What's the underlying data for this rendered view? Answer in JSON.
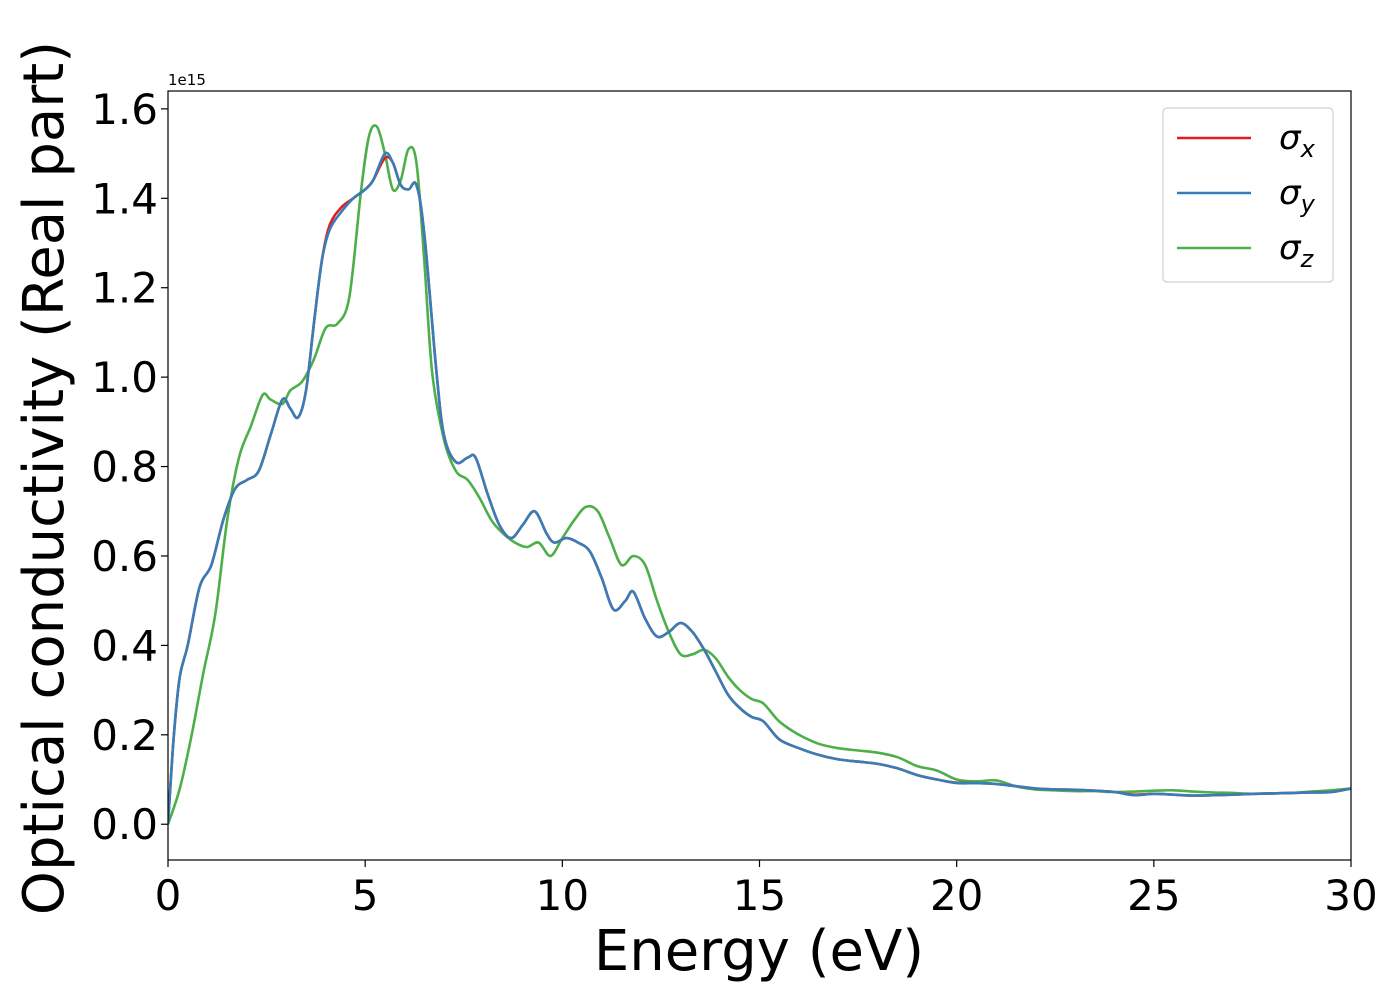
{
  "chart_data": {
    "type": "line",
    "title": "",
    "xlabel": "Energy (eV)",
    "ylabel": "Optical conductivity (Real part)",
    "y_offset_text": "1e15",
    "xlim": [
      0,
      30
    ],
    "ylim": [
      -0.08,
      1.64
    ],
    "xticks": [
      0,
      5,
      10,
      15,
      20,
      25,
      30
    ],
    "xtick_labels": [
      "0",
      "5",
      "10",
      "15",
      "20",
      "25",
      "30"
    ],
    "yticks": [
      0.0,
      0.2,
      0.4,
      0.6,
      0.8,
      1.0,
      1.2,
      1.4,
      1.6
    ],
    "ytick_labels": [
      "0.0",
      "0.2",
      "0.4",
      "0.6",
      "0.8",
      "1.0",
      "1.2",
      "1.4",
      "1.6"
    ],
    "grid": false,
    "legend_position": "top-right",
    "series": [
      {
        "name": "σ",
        "subscript": "x",
        "color": "#e41a1c",
        "x": [
          0,
          0.15,
          0.3,
          0.5,
          0.8,
          1.1,
          1.4,
          1.7,
          2.0,
          2.3,
          2.6,
          2.9,
          3.1,
          3.3,
          3.5,
          3.7,
          3.9,
          4.1,
          4.4,
          4.7,
          5.0,
          5.2,
          5.5,
          5.7,
          5.9,
          6.1,
          6.3,
          6.5,
          6.8,
          7.0,
          7.3,
          7.6,
          7.8,
          8.1,
          8.4,
          8.7,
          9.0,
          9.3,
          9.6,
          9.8,
          10.1,
          10.4,
          10.7,
          11.0,
          11.3,
          11.6,
          11.8,
          12.1,
          12.4,
          12.7,
          13.0,
          13.3,
          13.6,
          13.9,
          14.2,
          14.5,
          14.8,
          15.1,
          15.5,
          16.0,
          16.5,
          17.0,
          17.5,
          18.0,
          18.5,
          19.0,
          19.5,
          20.0,
          20.5,
          21.0,
          21.5,
          22.0,
          22.5,
          23.0,
          23.5,
          24.0,
          24.5,
          25.0,
          25.5,
          26.0,
          26.5,
          27.0,
          27.5,
          28.0,
          28.5,
          29.0,
          29.5,
          30.0
        ],
        "values": [
          0.0,
          0.2,
          0.33,
          0.4,
          0.53,
          0.58,
          0.68,
          0.75,
          0.77,
          0.79,
          0.87,
          0.95,
          0.93,
          0.91,
          0.97,
          1.12,
          1.26,
          1.34,
          1.38,
          1.4,
          1.42,
          1.44,
          1.49,
          1.48,
          1.43,
          1.42,
          1.43,
          1.32,
          1.02,
          0.87,
          0.81,
          0.82,
          0.82,
          0.74,
          0.67,
          0.64,
          0.67,
          0.7,
          0.65,
          0.63,
          0.64,
          0.63,
          0.61,
          0.55,
          0.48,
          0.5,
          0.52,
          0.46,
          0.42,
          0.43,
          0.45,
          0.43,
          0.39,
          0.34,
          0.29,
          0.26,
          0.24,
          0.23,
          0.19,
          0.17,
          0.155,
          0.145,
          0.14,
          0.135,
          0.125,
          0.11,
          0.1,
          0.093,
          0.092,
          0.09,
          0.085,
          0.08,
          0.078,
          0.077,
          0.075,
          0.072,
          0.066,
          0.068,
          0.066,
          0.064,
          0.065,
          0.066,
          0.068,
          0.069,
          0.07,
          0.071,
          0.072,
          0.08
        ]
      },
      {
        "name": "σ",
        "subscript": "y",
        "color": "#377eb8",
        "x": [
          0,
          0.15,
          0.3,
          0.5,
          0.8,
          1.1,
          1.4,
          1.7,
          2.0,
          2.3,
          2.6,
          2.9,
          3.1,
          3.3,
          3.5,
          3.7,
          3.9,
          4.1,
          4.4,
          4.7,
          5.0,
          5.2,
          5.5,
          5.7,
          5.9,
          6.1,
          6.3,
          6.5,
          6.8,
          7.0,
          7.3,
          7.6,
          7.8,
          8.1,
          8.4,
          8.7,
          9.0,
          9.3,
          9.6,
          9.8,
          10.1,
          10.4,
          10.7,
          11.0,
          11.3,
          11.6,
          11.8,
          12.1,
          12.4,
          12.7,
          13.0,
          13.3,
          13.6,
          13.9,
          14.2,
          14.5,
          14.8,
          15.1,
          15.5,
          16.0,
          16.5,
          17.0,
          17.5,
          18.0,
          18.5,
          19.0,
          19.5,
          20.0,
          20.5,
          21.0,
          21.5,
          22.0,
          22.5,
          23.0,
          23.5,
          24.0,
          24.5,
          25.0,
          25.5,
          26.0,
          26.5,
          27.0,
          27.5,
          28.0,
          28.5,
          29.0,
          29.5,
          30.0
        ],
        "values": [
          0.0,
          0.2,
          0.33,
          0.4,
          0.53,
          0.58,
          0.68,
          0.75,
          0.77,
          0.79,
          0.87,
          0.95,
          0.93,
          0.91,
          0.97,
          1.12,
          1.26,
          1.33,
          1.37,
          1.4,
          1.42,
          1.44,
          1.5,
          1.48,
          1.43,
          1.42,
          1.43,
          1.32,
          1.02,
          0.87,
          0.81,
          0.82,
          0.82,
          0.74,
          0.67,
          0.64,
          0.67,
          0.7,
          0.65,
          0.63,
          0.64,
          0.63,
          0.61,
          0.55,
          0.48,
          0.5,
          0.52,
          0.46,
          0.42,
          0.43,
          0.45,
          0.43,
          0.39,
          0.34,
          0.29,
          0.26,
          0.24,
          0.23,
          0.19,
          0.17,
          0.155,
          0.145,
          0.14,
          0.135,
          0.125,
          0.11,
          0.1,
          0.092,
          0.092,
          0.09,
          0.085,
          0.08,
          0.078,
          0.077,
          0.075,
          0.072,
          0.065,
          0.068,
          0.066,
          0.064,
          0.065,
          0.066,
          0.068,
          0.069,
          0.07,
          0.071,
          0.072,
          0.08
        ]
      },
      {
        "name": "σ",
        "subscript": "z",
        "color": "#4daf4a",
        "x": [
          0,
          0.3,
          0.6,
          0.9,
          1.2,
          1.5,
          1.8,
          2.1,
          2.4,
          2.6,
          2.9,
          3.1,
          3.4,
          3.7,
          4.0,
          4.3,
          4.6,
          4.9,
          5.1,
          5.3,
          5.5,
          5.7,
          5.9,
          6.1,
          6.3,
          6.5,
          6.7,
          7.0,
          7.3,
          7.6,
          7.9,
          8.2,
          8.5,
          8.8,
          9.1,
          9.4,
          9.7,
          10.0,
          10.3,
          10.6,
          10.9,
          11.2,
          11.5,
          11.8,
          12.1,
          12.4,
          12.7,
          13.0,
          13.3,
          13.6,
          13.9,
          14.2,
          14.5,
          14.8,
          15.1,
          15.5,
          16.0,
          16.5,
          17.0,
          17.5,
          18.0,
          18.5,
          19.0,
          19.5,
          20.0,
          20.5,
          21.0,
          21.5,
          22.0,
          22.5,
          23.0,
          23.5,
          24.0,
          24.5,
          25.0,
          25.5,
          26.0,
          26.5,
          27.0,
          27.5,
          28.0,
          28.5,
          29.0,
          29.5,
          30.0
        ],
        "values": [
          0.0,
          0.08,
          0.2,
          0.34,
          0.47,
          0.68,
          0.82,
          0.89,
          0.96,
          0.95,
          0.94,
          0.97,
          0.99,
          1.04,
          1.11,
          1.12,
          1.18,
          1.42,
          1.54,
          1.56,
          1.5,
          1.42,
          1.44,
          1.51,
          1.48,
          1.26,
          1.01,
          0.86,
          0.79,
          0.77,
          0.73,
          0.68,
          0.65,
          0.63,
          0.62,
          0.63,
          0.6,
          0.64,
          0.68,
          0.71,
          0.7,
          0.64,
          0.58,
          0.6,
          0.58,
          0.5,
          0.43,
          0.38,
          0.38,
          0.39,
          0.37,
          0.33,
          0.3,
          0.28,
          0.27,
          0.23,
          0.2,
          0.18,
          0.17,
          0.165,
          0.16,
          0.15,
          0.13,
          0.12,
          0.1,
          0.096,
          0.098,
          0.085,
          0.078,
          0.076,
          0.074,
          0.074,
          0.072,
          0.073,
          0.075,
          0.076,
          0.073,
          0.071,
          0.07,
          0.068,
          0.069,
          0.07,
          0.073,
          0.076,
          0.08
        ]
      }
    ]
  }
}
